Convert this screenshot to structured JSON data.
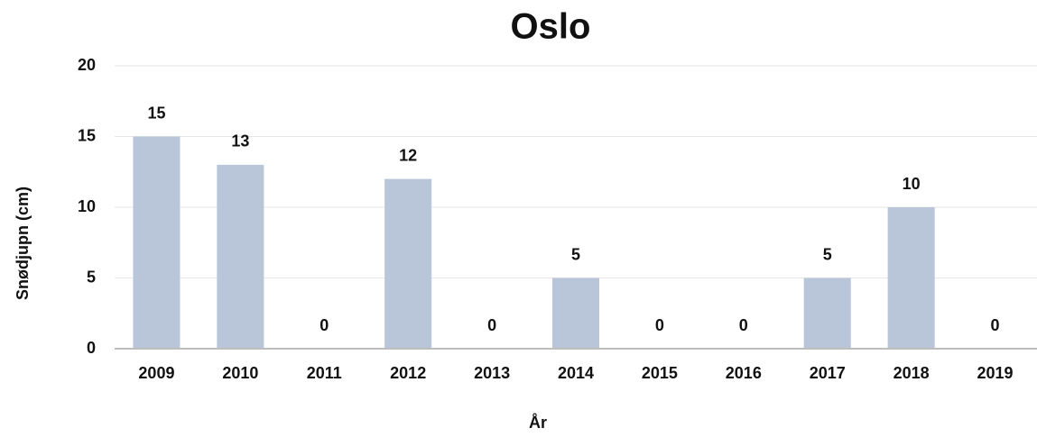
{
  "chart_data": {
    "type": "bar",
    "title": "Oslo",
    "x_label": "År",
    "y_label": "Snødjupn (cm)",
    "categories": [
      "2009",
      "2010",
      "2011",
      "2012",
      "2013",
      "2014",
      "2015",
      "2016",
      "2017",
      "2018",
      "2019"
    ],
    "values": [
      15,
      13,
      0,
      12,
      0,
      5,
      0,
      0,
      5,
      10,
      0
    ],
    "color": "#b9c5d9",
    "ylim": [
      0,
      20
    ],
    "yticks": [
      0,
      5,
      10,
      15,
      20
    ],
    "grid": true
  }
}
